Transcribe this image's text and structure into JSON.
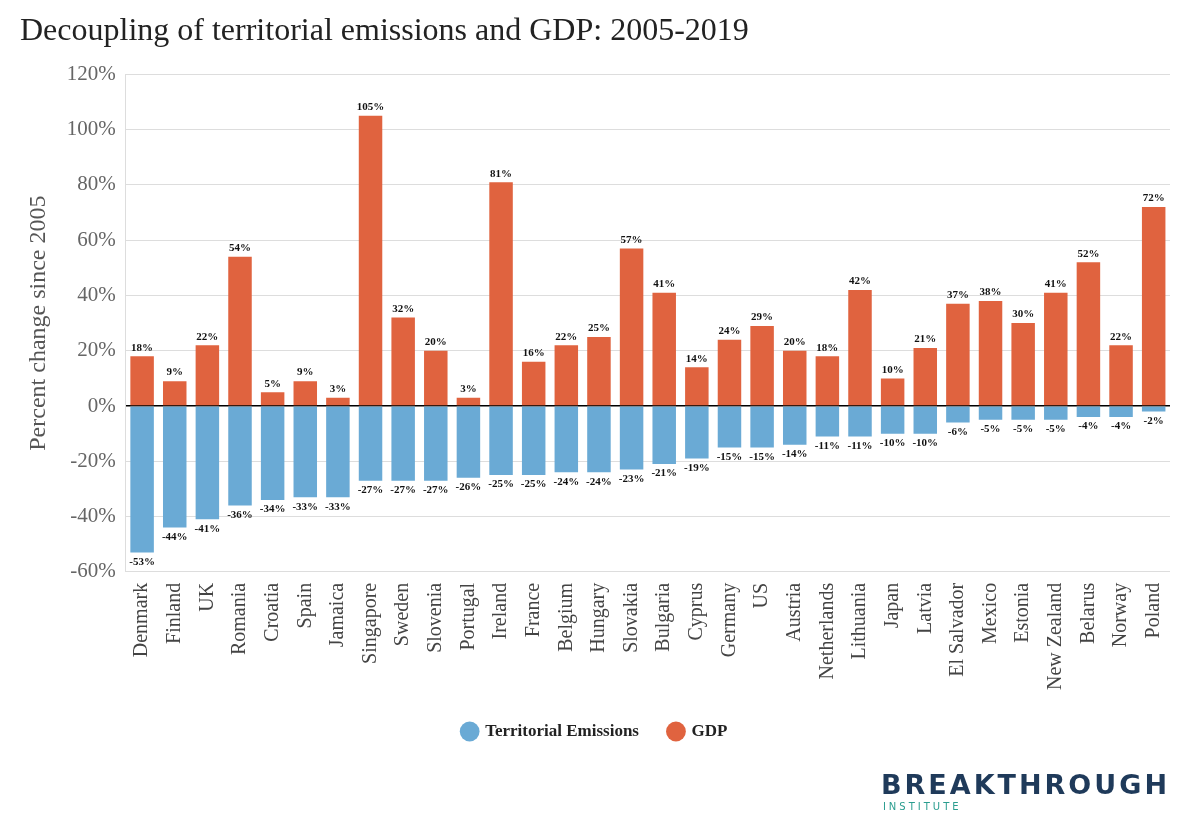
{
  "chart_data": {
    "type": "bar",
    "title": "Decoupling of territorial emissions and GDP: 2005-2019",
    "y_label": "Percent change since 2005",
    "categories": [
      "Denmark",
      "Finland",
      "UK",
      "Romania",
      "Croatia",
      "Spain",
      "Jamaica",
      "Singapore",
      "Sweden",
      "Slovenia",
      "Portugal",
      "Ireland",
      "France",
      "Belgium",
      "Hungary",
      "Slovakia",
      "Bulgaria",
      "Cyprus",
      "Germany",
      "US",
      "Austria",
      "Netherlands",
      "Lithuania",
      "Japan",
      "Latvia",
      "El Salvador",
      "Mexico",
      "Estonia",
      "New Zealand",
      "Belarus",
      "Norway",
      "Poland"
    ],
    "series": [
      {
        "name": "Territorial Emissions",
        "color": "#6aaad5",
        "values": [
          -53,
          -44,
          -41,
          -36,
          -34,
          -33,
          -33,
          -27,
          -27,
          -27,
          -26,
          -25,
          -25,
          -24,
          -24,
          -23,
          -21,
          -19,
          -15,
          -15,
          -14,
          -11,
          -11,
          -10,
          -10,
          -6,
          -5,
          -5,
          -5,
          -4,
          -4,
          -2
        ],
        "value_labels": [
          "-53%",
          "-44%",
          "-41%",
          "-36%",
          "-34%",
          "-33%",
          "-33%",
          "-27%",
          "-27%",
          "-27%",
          "-26%",
          "-25%",
          "-25%",
          "-24%",
          "-24%",
          "-23%",
          "-21%",
          "-19%",
          "-15%",
          "-15%",
          "-14%",
          "-11%",
          "-11%",
          "-10%",
          "-10%",
          "-6%",
          "-5%",
          "-5%",
          "-5%",
          "-4%",
          "-4%",
          "-2%"
        ]
      },
      {
        "name": "GDP",
        "color": "#e0633f",
        "values": [
          18,
          9,
          22,
          54,
          5,
          9,
          3,
          105,
          32,
          20,
          3,
          81,
          16,
          22,
          25,
          57,
          41,
          14,
          24,
          29,
          20,
          18,
          42,
          10,
          21,
          37,
          38,
          30,
          41,
          52,
          22,
          72
        ],
        "value_labels": [
          "18%",
          "9%",
          "22%",
          "54%",
          "5%",
          "9%",
          "3%",
          "105%",
          "32%",
          "20%",
          "3%",
          "81%",
          "16%",
          "22%",
          "25%",
          "57%",
          "41%",
          "14%",
          "24%",
          "29%",
          "20%",
          "18%",
          "42%",
          "10%",
          "21%",
          "37%",
          "38%",
          "30%",
          "41%",
          "52%",
          "22%",
          "72%"
        ]
      }
    ],
    "ylim": [
      -60,
      120
    ],
    "yticks": [
      {
        "value": -60,
        "label": "-60%"
      },
      {
        "value": -40,
        "label": "-40%"
      },
      {
        "value": -20,
        "label": "-20%"
      },
      {
        "value": 0,
        "label": "0%"
      },
      {
        "value": 20,
        "label": "20%"
      },
      {
        "value": 40,
        "label": "40%"
      },
      {
        "value": 60,
        "label": "60%"
      },
      {
        "value": 80,
        "label": "80%"
      },
      {
        "value": 100,
        "label": "100%"
      },
      {
        "value": 120,
        "label": "120%"
      }
    ],
    "grid": true,
    "legend": "bottom",
    "stacked": true,
    "data_labels": true,
    "annotations": [
      "BREAKTHROUGH",
      "INSTITUTE"
    ]
  }
}
